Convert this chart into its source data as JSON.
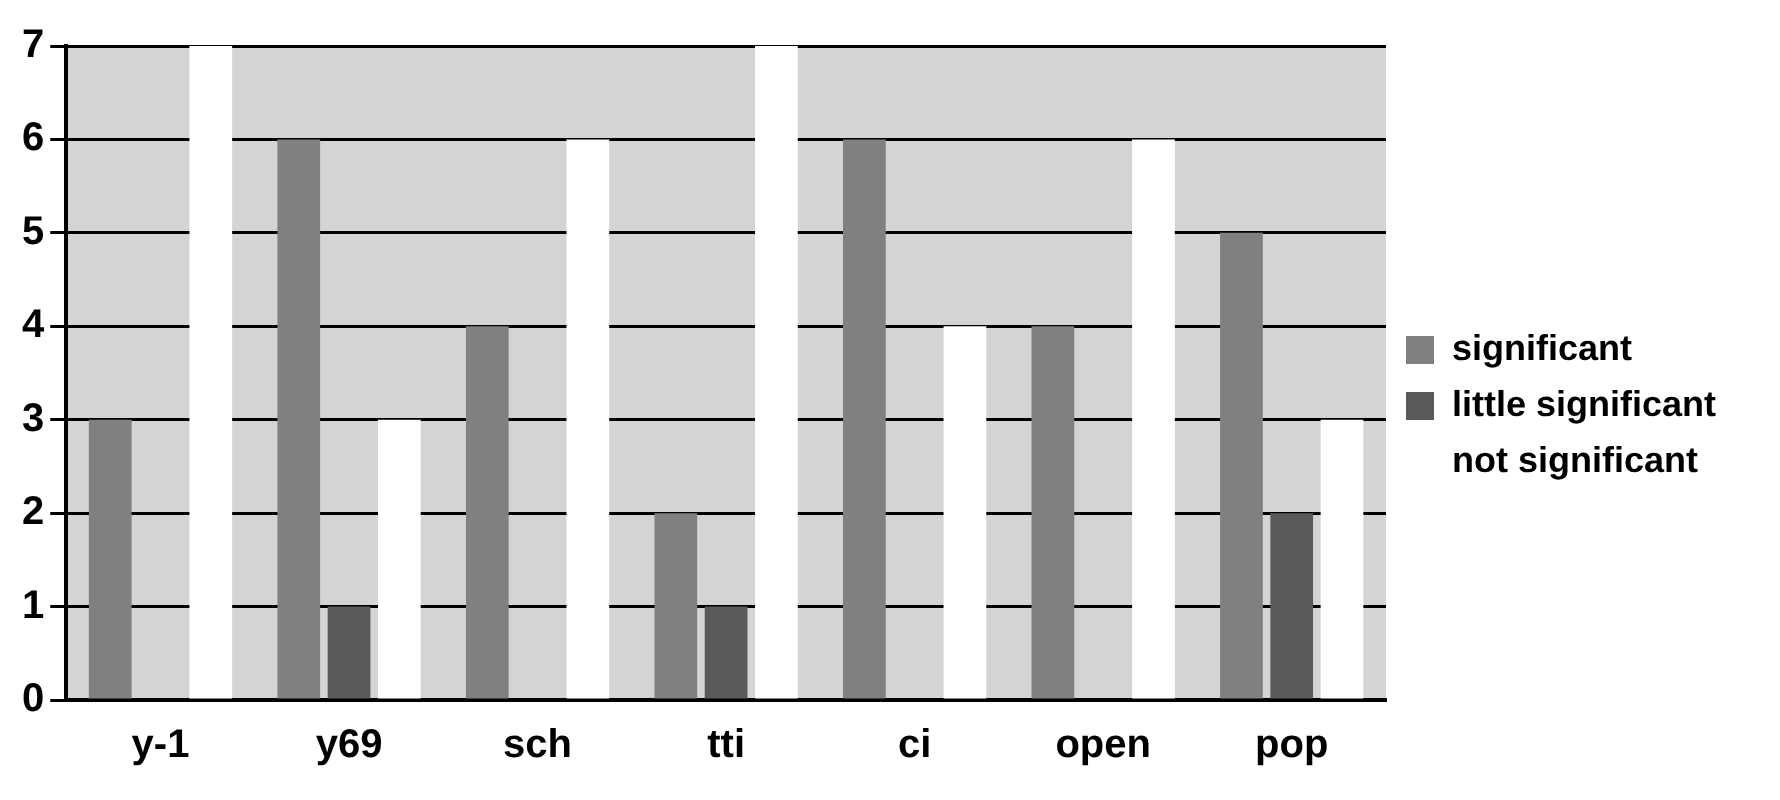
{
  "chart_data": {
    "type": "bar",
    "categories": [
      "y-1",
      "y69",
      "sch",
      "tti",
      "ci",
      "open",
      "pop"
    ],
    "series": [
      {
        "name": "significant",
        "color": "#808080",
        "values": [
          3,
          6,
          4,
          2,
          6,
          4,
          5
        ]
      },
      {
        "name": "little significant",
        "color": "#5a5a5a",
        "values": [
          0,
          1,
          0,
          1,
          0,
          0,
          2
        ]
      },
      {
        "name": "not significant",
        "color": "#ffffff",
        "values": [
          7,
          3,
          6,
          7,
          4,
          6,
          3
        ]
      }
    ],
    "ylim": [
      0,
      7
    ],
    "yticks": [
      0,
      1,
      2,
      3,
      4,
      5,
      6,
      7
    ],
    "grid": "y",
    "legend": "right"
  }
}
